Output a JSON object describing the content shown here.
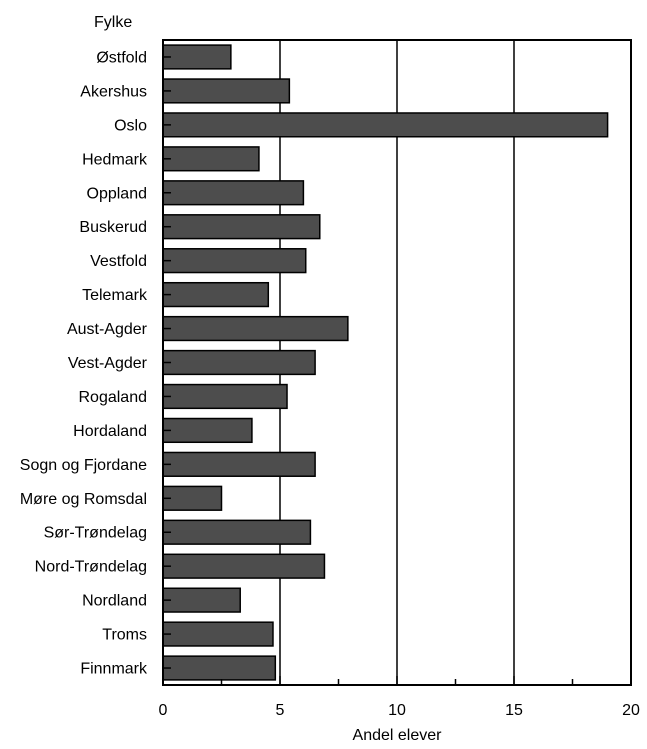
{
  "chart_data": {
    "type": "bar",
    "orientation": "horizontal",
    "y_title": "Fylke",
    "xlabel": "Andel elever",
    "xlim": [
      0,
      20
    ],
    "xticks": [
      0,
      5,
      10,
      15,
      20
    ],
    "grid": true,
    "categories": [
      "Østfold",
      "Akershus",
      "Oslo",
      "Hedmark",
      "Oppland",
      "Buskerud",
      "Vestfold",
      "Telemark",
      "Aust-Agder",
      "Vest-Agder",
      "Rogaland",
      "Hordaland",
      "Sogn og Fjordane",
      "Møre og Romsdal",
      "Sør-Trøndelag",
      "Nord-Trøndelag",
      "Nordland",
      "Troms",
      "Finnmark"
    ],
    "values": [
      2.9,
      5.4,
      19.0,
      4.1,
      6.0,
      6.7,
      6.1,
      4.5,
      7.9,
      6.5,
      5.3,
      3.8,
      6.5,
      2.5,
      6.3,
      6.9,
      3.3,
      4.7,
      4.8
    ],
    "colors": {
      "bar": "#4d4d4d",
      "stroke": "#000000",
      "grid": "#000000"
    }
  }
}
